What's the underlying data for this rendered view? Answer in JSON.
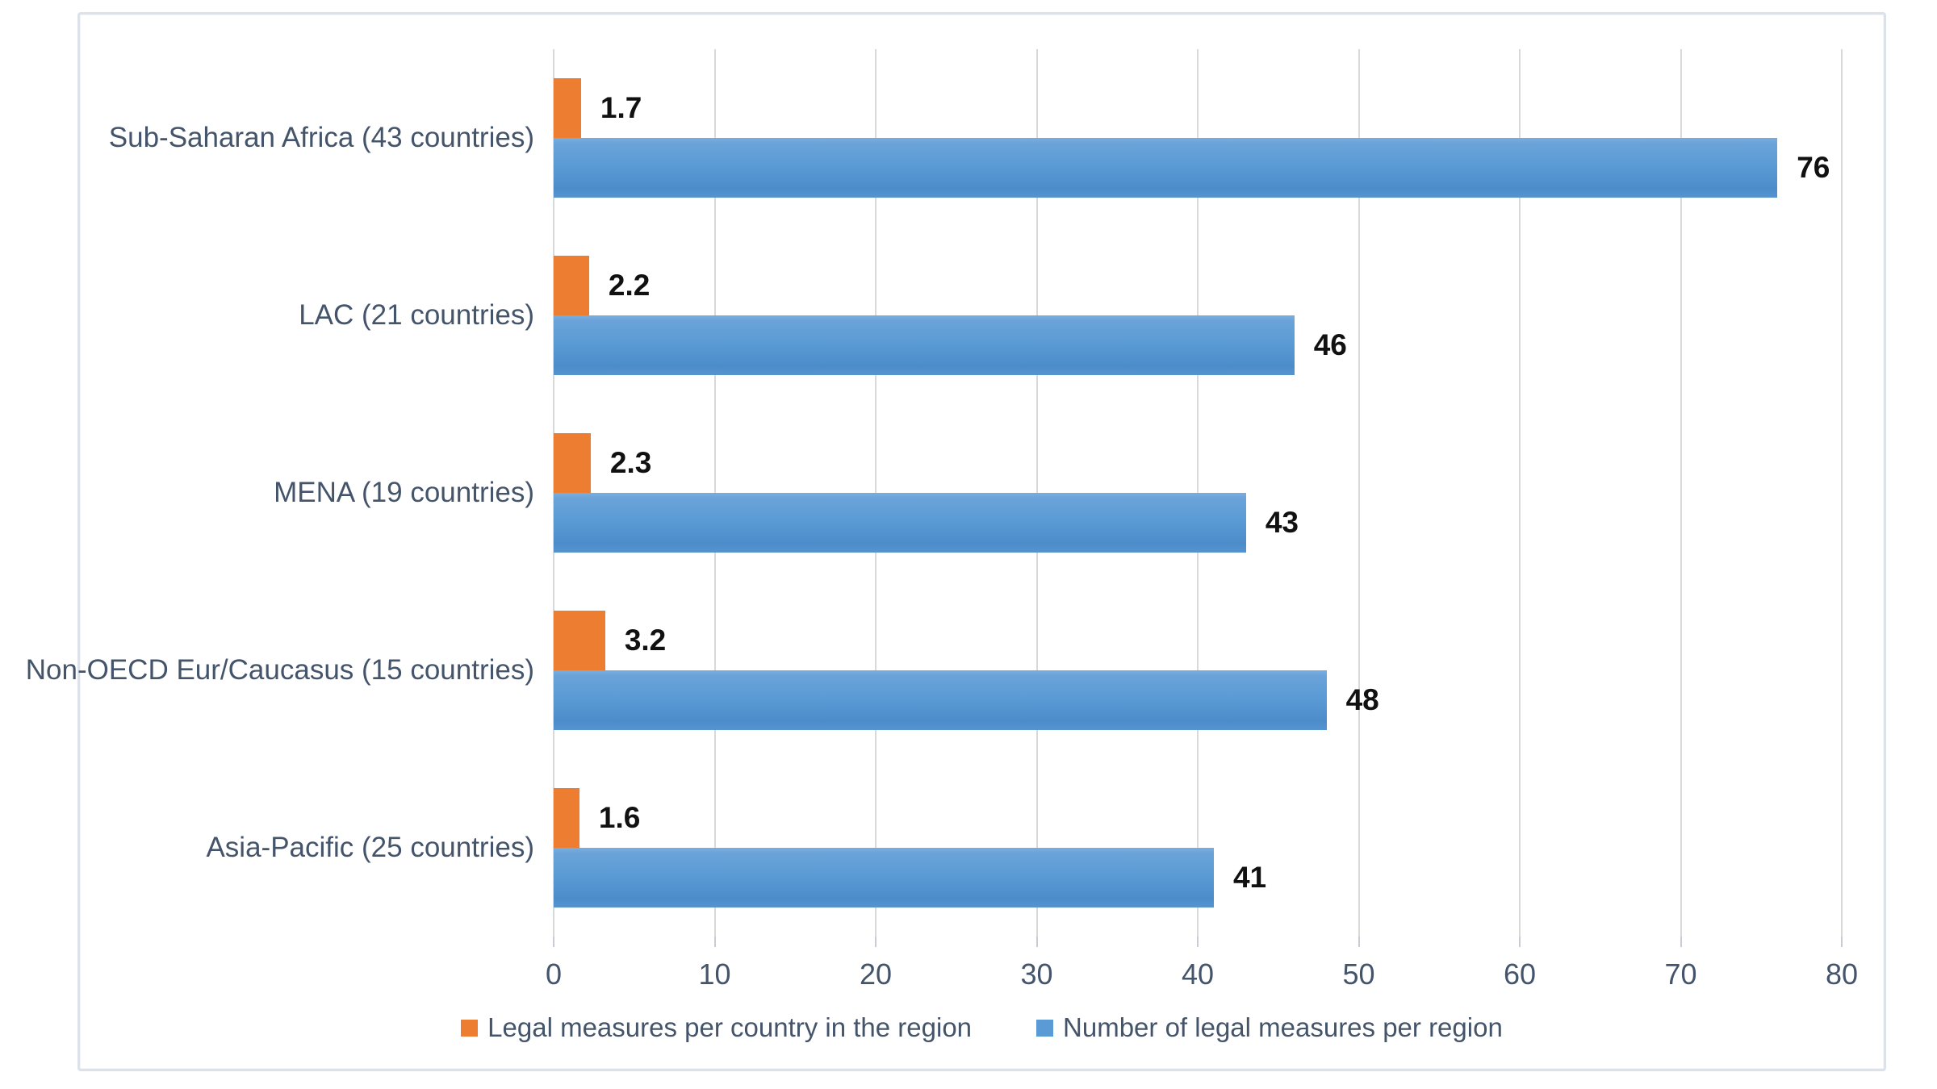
{
  "chart_data": {
    "type": "bar",
    "orientation": "horizontal",
    "title": "",
    "categories": [
      "Sub-Saharan Africa (43 countries)",
      "LAC (21 countries)",
      "MENA (19 countries)",
      "Non-OECD Eur/Caucasus (15 countries)",
      "Asia-Pacific (25 countries)"
    ],
    "series": [
      {
        "name": "Legal measures per country in the region",
        "color": "#ED7D31",
        "values": [
          1.7,
          2.2,
          2.3,
          3.2,
          1.6
        ],
        "data_labels": [
          "1.7",
          "2.2",
          "2.3",
          "3.2",
          "1.6"
        ]
      },
      {
        "name": "Number of legal measures per region",
        "color": "#5B9BD5",
        "values": [
          76,
          46,
          43,
          48,
          41
        ],
        "data_labels": [
          "76",
          "46",
          "43",
          "48",
          "41"
        ]
      }
    ],
    "xlim": [
      0,
      80
    ],
    "x_ticks": [
      "0",
      "10",
      "20",
      "30",
      "40",
      "50",
      "60",
      "70",
      "80"
    ],
    "grid": true,
    "legend_position": "bottom"
  },
  "colors": {
    "series_orange": "#ED7D31",
    "series_blue": "#5B9BD5",
    "label_text": "#44546A",
    "data_label_text": "#111111",
    "gridline": "#D9D9D9",
    "chart_border": "#DDE2EA"
  }
}
